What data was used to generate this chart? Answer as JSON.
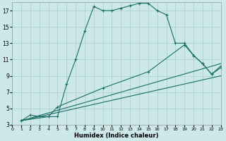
{
  "xlabel": "Humidex (Indice chaleur)",
  "background_color": "#cce8e8",
  "grid_color": "#aacece",
  "line_color": "#1a6e64",
  "xlim": [
    0,
    23
  ],
  "ylim": [
    3,
    18
  ],
  "xticks": [
    0,
    1,
    2,
    3,
    4,
    5,
    6,
    7,
    8,
    9,
    10,
    11,
    12,
    13,
    14,
    15,
    16,
    17,
    18,
    19,
    20,
    21,
    22,
    23
  ],
  "yticks": [
    3,
    5,
    7,
    9,
    11,
    13,
    15,
    17
  ],
  "series1_x": [
    1,
    2,
    3,
    4,
    5,
    6,
    7,
    8,
    9,
    10,
    11,
    12,
    13,
    14,
    15,
    16,
    17,
    18,
    19,
    20,
    21,
    22,
    23
  ],
  "series1_y": [
    3.5,
    4.2,
    4.0,
    4.0,
    4.0,
    8.0,
    11.0,
    14.5,
    17.5,
    17.0,
    17.0,
    17.3,
    17.6,
    17.9,
    17.9,
    17.0,
    16.5,
    13.0,
    13.0,
    11.5,
    10.5,
    9.2,
    10.0
  ],
  "series2_x": [
    1,
    4,
    5,
    10,
    15,
    19,
    20,
    21,
    22,
    23
  ],
  "series2_y": [
    3.5,
    4.0,
    5.2,
    7.5,
    9.5,
    12.8,
    11.5,
    10.5,
    9.2,
    10.2
  ],
  "series3_x": [
    1,
    23
  ],
  "series3_y": [
    3.5,
    10.5
  ],
  "series4_x": [
    1,
    23
  ],
  "series4_y": [
    3.5,
    9.0
  ]
}
